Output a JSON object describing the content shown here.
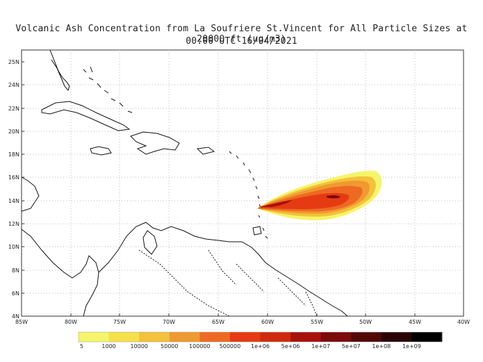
{
  "title": {
    "line1": "Volcanic Ash Concentration from La Soufriere St.Vincent for All Particle Sizes at 20000 ft (ug/m3)",
    "line2": "00:00 UTC 16/04/2021"
  },
  "map": {
    "lat_labels": [
      "25N",
      "24N",
      "22N",
      "20N",
      "18N",
      "16N",
      "14N",
      "12N",
      "10N",
      "8N",
      "6N",
      "4N"
    ],
    "lon_labels": [
      "85W",
      "80W",
      "75W",
      "70W",
      "65W",
      "60W",
      "55W",
      "50W",
      "45W",
      "40W"
    ],
    "grid": true
  },
  "colorbar": {
    "labels": [
      "5",
      "1000",
      "10000",
      "50000",
      "100000",
      "500000",
      "1e+06",
      "5e+06",
      "1e+07",
      "5e+07",
      "1e+08",
      "1e+09"
    ],
    "colors": [
      "#f4f56a",
      "#f6e04a",
      "#f3c13a",
      "#ef9a30",
      "#ee6a23",
      "#e63b12",
      "#cf2a0e",
      "#a7120b",
      "#7c0a0b",
      "#520707",
      "#2a0404",
      "#000000"
    ]
  },
  "plume": {
    "source": "La Soufriere St.Vincent",
    "source_lat": 13.3,
    "source_lon": -61.2
  }
}
